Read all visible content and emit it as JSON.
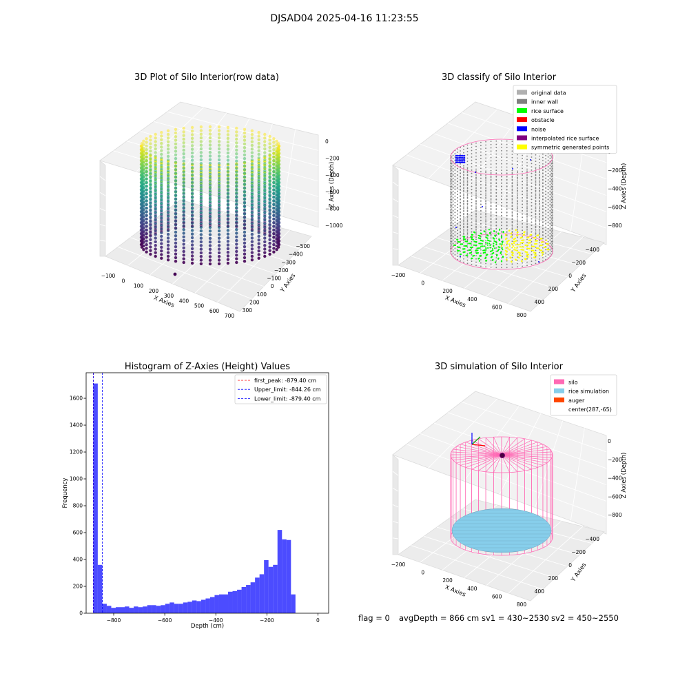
{
  "figure_title": "DJSAD04 2025-04-16 11:23:55",
  "colors": {
    "viridis": [
      "#440154",
      "#482878",
      "#3e4989",
      "#31688e",
      "#26828e",
      "#1f9e89",
      "#35b779",
      "#6ece58",
      "#b5de2b",
      "#fde725"
    ],
    "original": "#b0b0b0",
    "inner_wall": "#808080",
    "rice_surface": "#00ff00",
    "obstacle": "#ff0000",
    "noise": "#0000ff",
    "interpolated": "#800080",
    "symmetric": "#ffff00",
    "silo": "#ff69b4",
    "rice_sim": "#87ceeb",
    "auger": "#ff4500",
    "hist_bar": "#0000ff",
    "peak_line": "#ff0000",
    "limit_line": "#0000ff"
  },
  "chart_data": [
    {
      "type": "scatter3d",
      "title": "3D Plot of Silo Interior(row data)",
      "xlabel": "X Axies",
      "ylabel": "Y Axies",
      "zlabel": "Z Axies (Depth)",
      "xticks": [
        "−100",
        "0",
        "100",
        "200",
        "300",
        "400",
        "500",
        "600",
        "700"
      ],
      "yticks": [
        "−500",
        "−400",
        "−300",
        "−200",
        "−100",
        "0",
        "100",
        "200",
        "300"
      ],
      "zticks": [
        "−1000",
        "−800",
        "−600",
        "−400",
        "−200",
        "0"
      ],
      "xlim": [
        -130,
        720
      ],
      "ylim": [
        -520,
        340
      ],
      "zlim": [
        -1080,
        60
      ],
      "cylinder": {
        "cx": 287,
        "cy": -65,
        "r": 310,
        "ztop": -30,
        "zbottom": -980,
        "columns": 48,
        "levels": 28
      },
      "outlier": {
        "x": 290,
        "y": -470,
        "z": -1000
      },
      "colormap": "viridis"
    },
    {
      "type": "scatter3d",
      "title": "3D classify of Silo Interior",
      "xlabel": "X Axies",
      "ylabel": "Y Axies",
      "zlabel": "Z Axies (Depth)",
      "xticks": [
        "−200",
        "0",
        "200",
        "400",
        "600",
        "800"
      ],
      "yticks": [
        "−400",
        "−200",
        "0",
        "200",
        "400"
      ],
      "zticks": [
        "−800",
        "−600",
        "−400",
        "−200",
        "0"
      ],
      "xlim": [
        -250,
        820
      ],
      "ylim": [
        -540,
        460
      ],
      "zlim": [
        -900,
        60
      ],
      "legend": [
        {
          "label": "original data",
          "color": "#b0b0b0"
        },
        {
          "label": "inner wall",
          "color": "#808080"
        },
        {
          "label": "rice surface",
          "color": "#00ff00"
        },
        {
          "label": "obstacle",
          "color": "#ff0000"
        },
        {
          "label": "noise",
          "color": "#0000ff"
        },
        {
          "label": "interpolated rice surface",
          "color": "#800080"
        },
        {
          "label": "symmetric generated points",
          "color": "#ffff00"
        }
      ],
      "legend_position": "upper right",
      "cylinder": {
        "cx": 287,
        "cy": -65,
        "r": 360,
        "ztop": -30,
        "zbottom": -870,
        "rice_level": -860
      }
    },
    {
      "type": "bar",
      "title": "Histogram of Z-Axies (Height) Values",
      "xlabel": "Depth (cm)",
      "ylabel": "Frequency",
      "xlim": [
        -908,
        42
      ],
      "ylim": [
        0,
        1790
      ],
      "xticks": [
        {
          "v": -800,
          "label": "−800"
        },
        {
          "v": -600,
          "label": "−600"
        },
        {
          "v": -400,
          "label": "−400"
        },
        {
          "v": -200,
          "label": "−200"
        },
        {
          "v": 0,
          "label": "0"
        }
      ],
      "yticks": [
        0,
        200,
        400,
        600,
        800,
        1000,
        1200,
        1400,
        1600
      ],
      "bin_start": -880,
      "bin_width": 17.6,
      "values": [
        1710,
        360,
        70,
        55,
        40,
        45,
        45,
        50,
        40,
        50,
        45,
        50,
        60,
        60,
        55,
        60,
        70,
        80,
        70,
        70,
        80,
        85,
        95,
        90,
        100,
        110,
        120,
        135,
        140,
        140,
        160,
        165,
        175,
        195,
        210,
        230,
        265,
        290,
        395,
        345,
        360,
        620,
        550,
        545,
        140
      ],
      "vlines": [
        {
          "x": -879.4,
          "color": "#ff0000",
          "label": "first_peak: -879.40 cm"
        },
        {
          "x": -844.26,
          "color": "#0000ff",
          "label": "Upper_limit: -844.26 cm"
        },
        {
          "x": -879.4,
          "color": "#0000ff",
          "label": "Lower_limit: -879.40 cm"
        }
      ],
      "legend_position": "upper right"
    },
    {
      "type": "surface3d",
      "title": "3D simulation of Silo Interior",
      "xlabel": "X Axies",
      "ylabel": "Y Axies",
      "zlabel": "Z Axies (Depth)",
      "xticks": [
        "−200",
        "0",
        "200",
        "400",
        "600",
        "800"
      ],
      "yticks": [
        "−400",
        "−200",
        "0",
        "200",
        "400"
      ],
      "zticks": [
        "−800",
        "−600",
        "−400",
        "−200",
        "0"
      ],
      "xlim": [
        -250,
        820
      ],
      "ylim": [
        -540,
        460
      ],
      "zlim": [
        -900,
        60
      ],
      "legend": [
        {
          "label": "silo",
          "color": "#ff69b4"
        },
        {
          "label": "rice simulation",
          "color": "#87ceeb"
        },
        {
          "label": "auger",
          "color": "#ff4500"
        },
        {
          "label": "center(287,-65)",
          "color": ""
        }
      ],
      "legend_position": "upper right",
      "cylinder": {
        "cx": 287,
        "cy": -65,
        "r": 360,
        "ztop": -30,
        "zbottom": -870,
        "rice_level": -740
      }
    }
  ],
  "status": {
    "flag": "flag = 0",
    "avg_depth": "avgDepth = 866 cm",
    "sv1": "sv1 = 430~2530",
    "sv2": "sv2 = 450~2550"
  }
}
